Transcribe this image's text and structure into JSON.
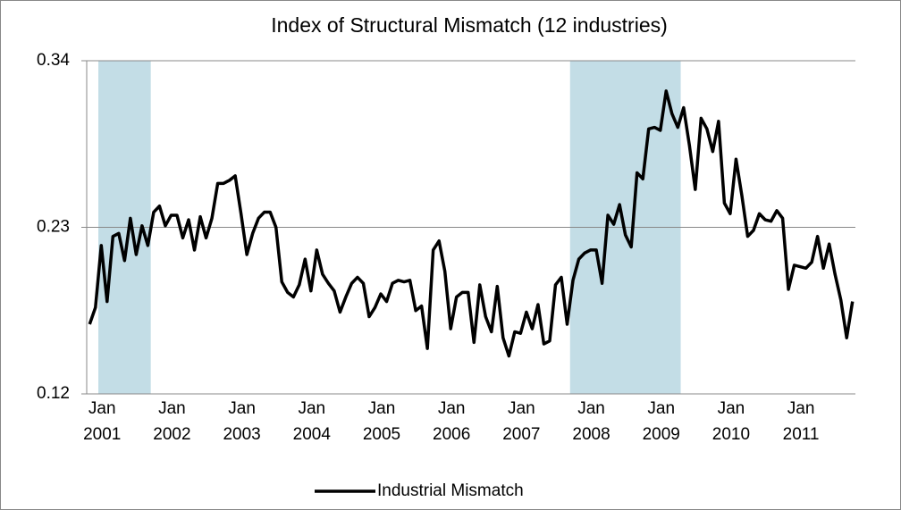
{
  "chart_data": {
    "type": "line",
    "title": "Index of Structural Mismatch (12 industries)",
    "categories": [
      "Jan 2001",
      null,
      null,
      null,
      null,
      null,
      null,
      null,
      null,
      null,
      null,
      null,
      "Jan 2002",
      null,
      null,
      null,
      null,
      null,
      null,
      null,
      null,
      null,
      null,
      null,
      "Jan 2003",
      null,
      null,
      null,
      null,
      null,
      null,
      null,
      null,
      null,
      null,
      null,
      "Jan 2004",
      null,
      null,
      null,
      null,
      null,
      null,
      null,
      null,
      null,
      null,
      null,
      "Jan 2005",
      null,
      null,
      null,
      null,
      null,
      null,
      null,
      null,
      null,
      null,
      null,
      "Jan 2006",
      null,
      null,
      null,
      null,
      null,
      null,
      null,
      null,
      null,
      null,
      null,
      "Jan 2007",
      null,
      null,
      null,
      null,
      null,
      null,
      null,
      null,
      null,
      null,
      null,
      "Jan 2008",
      null,
      null,
      null,
      null,
      null,
      null,
      null,
      null,
      null,
      null,
      null,
      "Jan 2009",
      null,
      null,
      null,
      null,
      null,
      null,
      null,
      null,
      null,
      null,
      null,
      "Jan 2010",
      null,
      null,
      null,
      null,
      null,
      null,
      null,
      null,
      null,
      null,
      null,
      "Jan 2011",
      null,
      null,
      null,
      null,
      null,
      null,
      null,
      null,
      null,
      null,
      null
    ],
    "series": [
      {
        "name": "Industrial Mismatch",
        "color": "#000000",
        "values": [
          0.166,
          0.177,
          0.218,
          0.181,
          0.224,
          0.226,
          0.208,
          0.236,
          0.212,
          0.231,
          0.218,
          0.24,
          0.244,
          0.231,
          0.238,
          0.238,
          0.223,
          0.235,
          0.215,
          0.237,
          0.223,
          0.236,
          0.259,
          0.259,
          0.261,
          0.264,
          0.239,
          0.212,
          0.226,
          0.236,
          0.24,
          0.24,
          0.23,
          0.194,
          0.187,
          0.184,
          0.192,
          0.209,
          0.188,
          0.215,
          0.199,
          0.193,
          0.188,
          0.174,
          0.184,
          0.193,
          0.197,
          0.193,
          0.171,
          0.177,
          0.186,
          0.181,
          0.193,
          0.195,
          0.194,
          0.195,
          0.175,
          0.178,
          0.15,
          0.215,
          0.221,
          0.201,
          0.163,
          0.184,
          0.187,
          0.187,
          0.154,
          0.192,
          0.171,
          0.161,
          0.191,
          0.157,
          0.145,
          0.161,
          0.16,
          0.174,
          0.163,
          0.179,
          0.153,
          0.155,
          0.192,
          0.197,
          0.166,
          0.195,
          0.209,
          0.213,
          0.215,
          0.215,
          0.193,
          0.238,
          0.232,
          0.245,
          0.225,
          0.217,
          0.266,
          0.262,
          0.295,
          0.296,
          0.294,
          0.32,
          0.305,
          0.296,
          0.309,
          0.284,
          0.255,
          0.302,
          0.295,
          0.28,
          0.3,
          0.246,
          0.239,
          0.275,
          0.251,
          0.224,
          0.228,
          0.239,
          0.235,
          0.234,
          0.241,
          0.236,
          0.189,
          0.205,
          0.204,
          0.203,
          0.207,
          0.224,
          0.203,
          0.219,
          0.199,
          0.182,
          0.157,
          0.181
        ]
      }
    ],
    "shaded_periods": [
      {
        "from": 2,
        "to": 10
      },
      {
        "from": 83,
        "to": 101
      }
    ],
    "shade_color": "#b9d7e2",
    "ylim": [
      0.12,
      0.34
    ],
    "yticks": [
      0.12,
      0.23,
      0.34
    ],
    "grid": true,
    "legend": "bottom"
  }
}
